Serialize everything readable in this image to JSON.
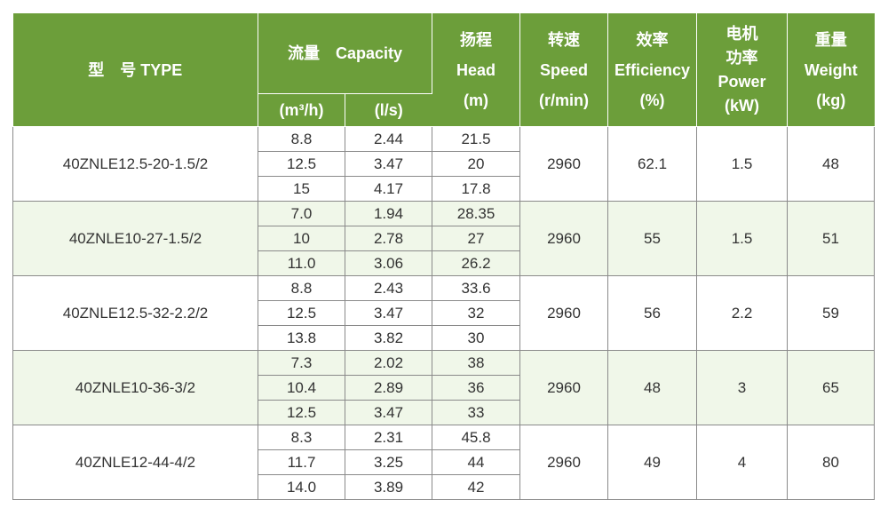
{
  "header": {
    "type": "型　号 TYPE",
    "capacity": "流量　Capacity",
    "capacity_m3h": "(m³/h)",
    "capacity_ls": "(l/s)",
    "head_cn": "扬程",
    "head_en": "Head",
    "head_unit": "(m)",
    "speed_cn": "转速",
    "speed_en": "Speed",
    "speed_unit": "(r/min)",
    "eff_cn": "效率",
    "eff_en": "Efficiency",
    "eff_unit": "(%)",
    "power_cn1": "电机",
    "power_cn2": "功率",
    "power_en": "Power",
    "power_unit": "(kW)",
    "weight_cn": "重量",
    "weight_en": "Weight",
    "weight_unit": "(kg)"
  },
  "models": [
    {
      "type": "40ZNLE12.5-20-1.5/2",
      "speed": "2960",
      "efficiency": "62.1",
      "power": "1.5",
      "weight": "48",
      "points": [
        {
          "m3h": "8.8",
          "ls": "2.44",
          "head": "21.5"
        },
        {
          "m3h": "12.5",
          "ls": "3.47",
          "head": "20"
        },
        {
          "m3h": "15",
          "ls": "4.17",
          "head": "17.8"
        }
      ]
    },
    {
      "type": "40ZNLE10-27-1.5/2",
      "speed": "2960",
      "efficiency": "55",
      "power": "1.5",
      "weight": "51",
      "points": [
        {
          "m3h": "7.0",
          "ls": "1.94",
          "head": "28.35"
        },
        {
          "m3h": "10",
          "ls": "2.78",
          "head": "27"
        },
        {
          "m3h": "11.0",
          "ls": "3.06",
          "head": "26.2"
        }
      ]
    },
    {
      "type": "40ZNLE12.5-32-2.2/2",
      "speed": "2960",
      "efficiency": "56",
      "power": "2.2",
      "weight": "59",
      "points": [
        {
          "m3h": "8.8",
          "ls": "2.43",
          "head": "33.6"
        },
        {
          "m3h": "12.5",
          "ls": "3.47",
          "head": "32"
        },
        {
          "m3h": "13.8",
          "ls": "3.82",
          "head": "30"
        }
      ]
    },
    {
      "type": "40ZNLE10-36-3/2",
      "speed": "2960",
      "efficiency": "48",
      "power": "3",
      "weight": "65",
      "points": [
        {
          "m3h": "7.3",
          "ls": "2.02",
          "head": "38"
        },
        {
          "m3h": "10.4",
          "ls": "2.89",
          "head": "36"
        },
        {
          "m3h": "12.5",
          "ls": "3.47",
          "head": "33"
        }
      ]
    },
    {
      "type": "40ZNLE12-44-4/2",
      "speed": "2960",
      "efficiency": "49",
      "power": "4",
      "weight": "80",
      "points": [
        {
          "m3h": "8.3",
          "ls": "2.31",
          "head": "45.8"
        },
        {
          "m3h": "11.7",
          "ls": "3.25",
          "head": "44"
        },
        {
          "m3h": "14.0",
          "ls": "3.89",
          "head": "42"
        }
      ]
    }
  ],
  "colors": {
    "header_bg": "#6c9e3a",
    "alt_row_bg": "#f0f7e9",
    "border": "#8a8a8a"
  }
}
